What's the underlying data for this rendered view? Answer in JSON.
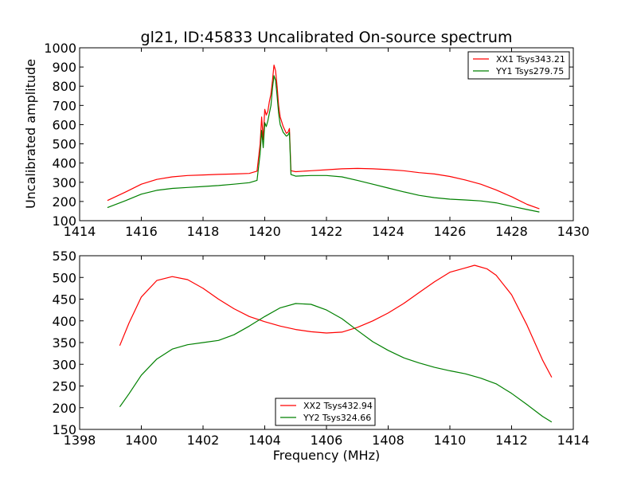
{
  "colors": {
    "xx": "#ff0000",
    "yy": "#008000"
  },
  "chart_data": [
    {
      "type": "line",
      "title": "gl21, ID:45833 Uncalibrated On-source spectrum",
      "xlabel": "",
      "ylabel": "Uncalibrated amplitude",
      "xlim": [
        1414,
        1430
      ],
      "ylim": [
        100,
        1000
      ],
      "xticks": [
        1414,
        1416,
        1418,
        1420,
        1422,
        1424,
        1426,
        1428,
        1430
      ],
      "yticks": [
        100,
        200,
        300,
        400,
        500,
        600,
        700,
        800,
        900,
        1000
      ],
      "legend_position": "top-right",
      "series": [
        {
          "name": "XX1 Tsys343.21",
          "color": "#ff0000",
          "x": [
            1414.9,
            1415.5,
            1416.0,
            1416.5,
            1417.0,
            1417.5,
            1418.0,
            1418.5,
            1419.0,
            1419.5,
            1419.75,
            1419.85,
            1419.9,
            1419.95,
            1420.0,
            1420.05,
            1420.1,
            1420.15,
            1420.2,
            1420.25,
            1420.3,
            1420.35,
            1420.4,
            1420.45,
            1420.5,
            1420.6,
            1420.7,
            1420.75,
            1420.8,
            1420.85,
            1421.0,
            1421.5,
            1422.0,
            1422.5,
            1423.0,
            1423.5,
            1424.0,
            1424.5,
            1425.0,
            1425.5,
            1426.0,
            1426.5,
            1427.0,
            1427.5,
            1428.0,
            1428.5,
            1428.9
          ],
          "y": [
            205,
            250,
            290,
            315,
            328,
            335,
            338,
            341,
            343,
            346,
            358,
            500,
            640,
            520,
            680,
            650,
            670,
            720,
            760,
            830,
            910,
            880,
            800,
            700,
            640,
            590,
            555,
            560,
            580,
            360,
            355,
            360,
            365,
            370,
            372,
            370,
            366,
            360,
            350,
            343,
            330,
            312,
            290,
            260,
            225,
            185,
            162
          ]
        },
        {
          "name": "YY1 Tsys279.75",
          "color": "#008000",
          "x": [
            1414.9,
            1415.5,
            1416.0,
            1416.5,
            1417.0,
            1417.5,
            1418.0,
            1418.5,
            1419.0,
            1419.5,
            1419.75,
            1419.85,
            1419.9,
            1419.95,
            1420.0,
            1420.05,
            1420.1,
            1420.15,
            1420.2,
            1420.25,
            1420.3,
            1420.35,
            1420.4,
            1420.45,
            1420.5,
            1420.6,
            1420.7,
            1420.75,
            1420.8,
            1420.85,
            1421.0,
            1421.5,
            1422.0,
            1422.5,
            1423.0,
            1423.5,
            1424.0,
            1424.5,
            1425.0,
            1425.5,
            1426.0,
            1426.5,
            1427.0,
            1427.5,
            1428.0,
            1428.5,
            1428.9
          ],
          "y": [
            168,
            205,
            238,
            258,
            268,
            273,
            278,
            283,
            290,
            298,
            310,
            450,
            570,
            480,
            610,
            590,
            620,
            660,
            700,
            790,
            855,
            830,
            750,
            660,
            600,
            560,
            540,
            545,
            560,
            340,
            332,
            335,
            335,
            328,
            310,
            290,
            270,
            250,
            232,
            220,
            212,
            208,
            203,
            193,
            175,
            158,
            145
          ]
        }
      ]
    },
    {
      "type": "line",
      "title": "",
      "xlabel": "Frequency (MHz)",
      "ylabel": "",
      "xlim": [
        1398,
        1414
      ],
      "ylim": [
        150,
        550
      ],
      "xticks": [
        1398,
        1400,
        1402,
        1404,
        1406,
        1408,
        1410,
        1412,
        1414
      ],
      "yticks": [
        150,
        200,
        250,
        300,
        350,
        400,
        450,
        500,
        550
      ],
      "legend_position": "bottom-center",
      "series": [
        {
          "name": "XX2 Tsys432.94",
          "color": "#ff0000",
          "x": [
            1399.3,
            1399.6,
            1400.0,
            1400.5,
            1401.0,
            1401.5,
            1402.0,
            1402.5,
            1403.0,
            1403.5,
            1404.0,
            1404.5,
            1405.0,
            1405.5,
            1406.0,
            1406.5,
            1407.0,
            1407.5,
            1408.0,
            1408.5,
            1409.0,
            1409.5,
            1410.0,
            1410.5,
            1410.8,
            1411.2,
            1411.5,
            1412.0,
            1412.5,
            1413.0,
            1413.3
          ],
          "y": [
            343,
            395,
            455,
            493,
            502,
            495,
            475,
            450,
            428,
            410,
            398,
            388,
            380,
            375,
            372,
            374,
            385,
            400,
            418,
            440,
            465,
            490,
            512,
            522,
            528,
            520,
            505,
            460,
            390,
            310,
            270
          ]
        },
        {
          "name": "YY2 Tsys324.66",
          "color": "#008000",
          "x": [
            1399.3,
            1399.6,
            1400.0,
            1400.5,
            1401.0,
            1401.5,
            1402.0,
            1402.5,
            1403.0,
            1403.5,
            1404.0,
            1404.5,
            1405.0,
            1405.5,
            1406.0,
            1406.5,
            1407.0,
            1407.5,
            1408.0,
            1408.5,
            1409.0,
            1409.5,
            1410.0,
            1410.5,
            1411.0,
            1411.5,
            1412.0,
            1412.5,
            1413.0,
            1413.3
          ],
          "y": [
            202,
            232,
            275,
            312,
            335,
            345,
            350,
            355,
            368,
            388,
            410,
            430,
            440,
            438,
            425,
            405,
            378,
            352,
            332,
            315,
            303,
            293,
            285,
            278,
            268,
            255,
            233,
            207,
            180,
            167
          ]
        }
      ]
    }
  ]
}
